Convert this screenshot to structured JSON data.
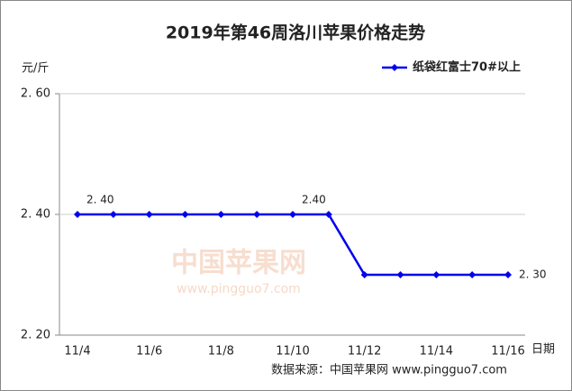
{
  "chart_data": {
    "type": "line",
    "title": "2019年第46周洛川苹果价格走势",
    "y_label": "元/斤",
    "x_label": "日期",
    "source": "数据来源：中国苹果网 www.pingguo7.com",
    "watermark": [
      "中国苹果网",
      "www.pingguo7.com"
    ],
    "categories": [
      "11/4",
      null,
      "11/6",
      null,
      "11/8",
      null,
      "11/10",
      null,
      "11/12",
      null,
      "11/14",
      null,
      "11/16"
    ],
    "series": [
      {
        "name": "纸袋红富士70#以上",
        "color": "#0000ee",
        "values": [
          2.4,
          2.4,
          2.4,
          2.4,
          2.4,
          2.4,
          2.4,
          2.4,
          2.3,
          2.3,
          2.3,
          2.3,
          2.3
        ],
        "value_labels": [
          "2. 40",
          null,
          null,
          null,
          null,
          null,
          "2.40",
          null,
          null,
          null,
          null,
          null,
          "2. 30"
        ]
      }
    ],
    "ylim": [
      2.2,
      2.6
    ],
    "yticks": [
      {
        "value": 2.2,
        "label": "2. 20"
      },
      {
        "value": 2.4,
        "label": "2. 40"
      },
      {
        "value": 2.6,
        "label": "2. 60"
      }
    ],
    "grid": true,
    "legend": "top-right"
  }
}
